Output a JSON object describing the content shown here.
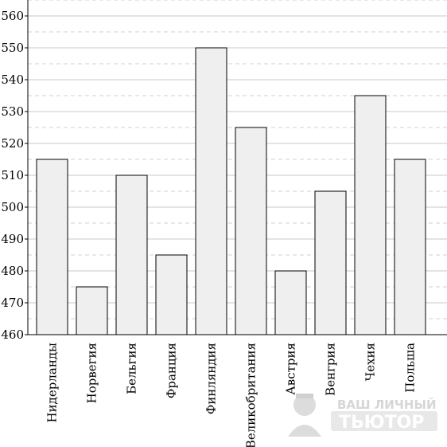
{
  "chart_data": {
    "type": "bar",
    "title": "",
    "xlabel": "",
    "ylabel": "",
    "categories": [
      "Нидерланды",
      "Норвегия",
      "Бельгия",
      "Франция",
      "Финляндия",
      "Великобритания",
      "Австрия",
      "Венгрия",
      "Чехия",
      "Польша"
    ],
    "values": [
      515,
      475,
      510,
      485,
      550,
      525,
      480,
      505,
      535,
      515
    ],
    "ylim": [
      460,
      565
    ],
    "yticks": [
      460,
      470,
      480,
      490,
      500,
      510,
      520,
      530,
      540,
      550,
      560
    ],
    "grid": "major solid, minor dashed (step 5)",
    "bar_fill": "#efefef",
    "bar_stroke": "#000000"
  },
  "watermark": {
    "line1": "ВАШ ЛИЧНЫЙ",
    "line2": "ТЬЮТОР"
  }
}
